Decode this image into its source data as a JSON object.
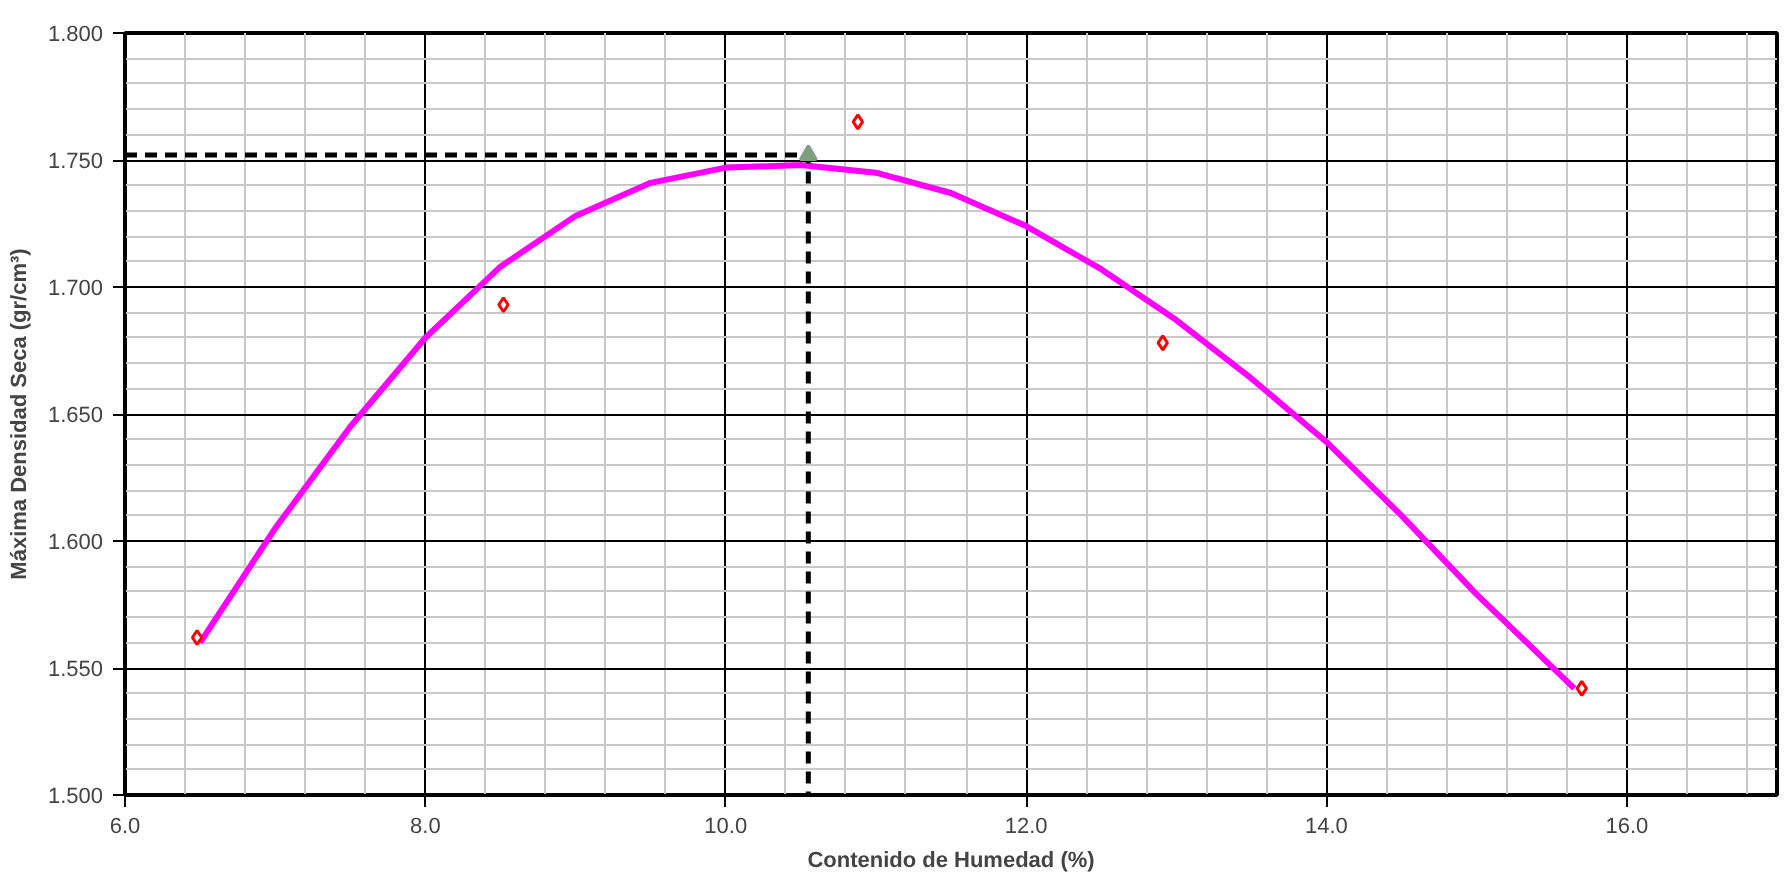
{
  "chart_data": {
    "type": "scatter",
    "xlabel": "Contenido de Humedad (%)",
    "ylabel": "Máxima Densidad Seca (gr/cm³)",
    "xlim": [
      6,
      17
    ],
    "ylim": [
      1.5,
      1.8
    ],
    "xticks": [
      {
        "value": 6,
        "label": "6.0"
      },
      {
        "value": 8,
        "label": "8.0"
      },
      {
        "value": 10,
        "label": "10.0"
      },
      {
        "value": 12,
        "label": "12.0"
      },
      {
        "value": 14,
        "label": "14.0"
      },
      {
        "value": 16,
        "label": "16.0"
      }
    ],
    "yticks": [
      {
        "value": 1.5,
        "label": "1.500"
      },
      {
        "value": 1.55,
        "label": "1.550"
      },
      {
        "value": 1.6,
        "label": "1.600"
      },
      {
        "value": 1.65,
        "label": "1.650"
      },
      {
        "value": 1.7,
        "label": "1.700"
      },
      {
        "value": 1.75,
        "label": "1.750"
      },
      {
        "value": 1.8,
        "label": "1.800"
      }
    ],
    "grid": true,
    "series": [
      {
        "type": "line",
        "color": "#ff00ff",
        "marker": "none",
        "line_style": "solid",
        "x": [
          6.5,
          7,
          7.5,
          8,
          8.5,
          9,
          9.5,
          10,
          10.5,
          11,
          11.5,
          12,
          12.5,
          13,
          13.5,
          14,
          14.5,
          15,
          15.65
        ],
        "values": [
          1.56,
          1.605,
          1.645,
          1.68,
          1.708,
          1.728,
          1.741,
          1.747,
          1.748,
          1.745,
          1.737,
          1.724,
          1.707,
          1.687,
          1.664,
          1.639,
          1.61,
          1.579,
          1.542
        ]
      },
      {
        "color": "#ff0000",
        "marker": "diamond",
        "x": [
          6.48,
          8.52,
          10.88,
          12.91,
          15.7
        ],
        "values": [
          1.562,
          1.693,
          1.765,
          1.678,
          1.542
        ]
      },
      {
        "type": "line",
        "color": "#000000",
        "marker": "none",
        "line_style": "dashed",
        "x": [
          6,
          10.55,
          10.55
        ],
        "values": [
          1.752,
          1.752,
          1.5
        ]
      },
      {
        "type": "scatter",
        "color": "#7f9f7f",
        "marker": "triangle",
        "x": [
          10.55
        ],
        "values": [
          1.752
        ]
      }
    ]
  }
}
